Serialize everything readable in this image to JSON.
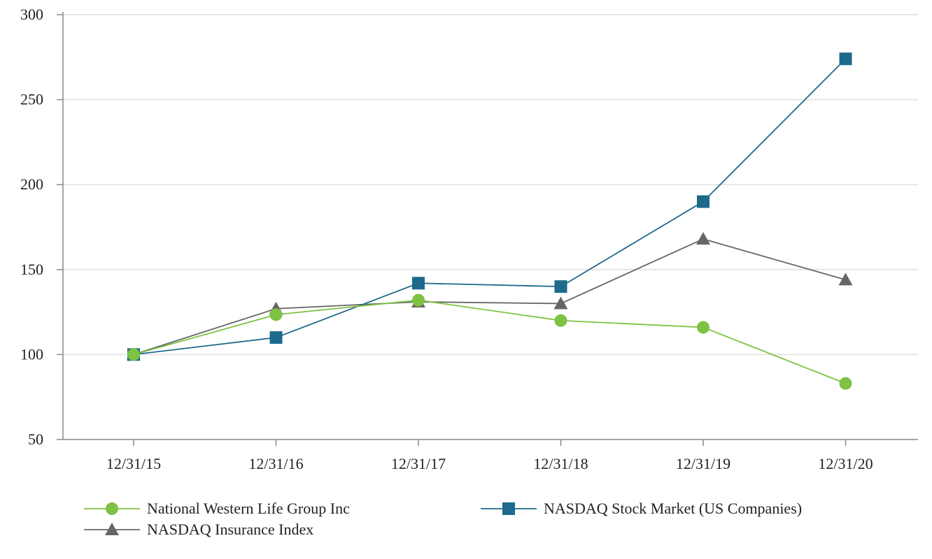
{
  "chart_data": {
    "type": "line",
    "categories": [
      "12/31/15",
      "12/31/16",
      "12/31/17",
      "12/31/18",
      "12/31/19",
      "12/31/20"
    ],
    "ylim": [
      50,
      300
    ],
    "yticks": [
      50,
      100,
      150,
      200,
      250,
      300
    ],
    "grid": true,
    "legend_position": "bottom",
    "series": [
      {
        "name": "National Western Life Group Inc",
        "color": "#7dc242",
        "marker": "circle",
        "values": [
          100,
          123.5,
          132,
          120,
          116,
          83
        ]
      },
      {
        "name": "NASDAQ Stock Market (US Companies)",
        "color": "#1d6a8c",
        "marker": "square",
        "values": [
          100,
          110,
          142,
          140,
          190,
          274
        ]
      },
      {
        "name": "NASDAQ Insurance Index",
        "color": "#666666",
        "marker": "triangle",
        "values": [
          100,
          127,
          131,
          130,
          168,
          144
        ]
      }
    ]
  }
}
